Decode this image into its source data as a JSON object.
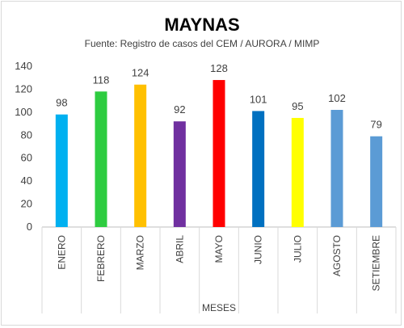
{
  "chart_data": {
    "type": "bar",
    "title": "MAYNAS",
    "subtitle": "Fuente: Registro de casos del CEM / AURORA / MIMP",
    "xlabel": "MESES",
    "ylabel": "",
    "ylim": [
      0,
      140
    ],
    "yticks": [
      0,
      20,
      40,
      60,
      80,
      100,
      120,
      140
    ],
    "grid": false,
    "legend": "none",
    "categories": [
      "ENERO",
      "FEBRERO",
      "MARZO",
      "ABRIL",
      "MAYO",
      "JUNIO",
      "JULIO",
      "AGOSTO",
      "SETIEMBRE"
    ],
    "values": [
      98,
      118,
      124,
      92,
      128,
      101,
      95,
      102,
      79
    ],
    "colors": [
      "#00b0f0",
      "#2ecc40",
      "#ffc000",
      "#7030a0",
      "#ff0000",
      "#0070c0",
      "#ffff00",
      "#5b9bd5",
      "#5b9bd5"
    ]
  }
}
